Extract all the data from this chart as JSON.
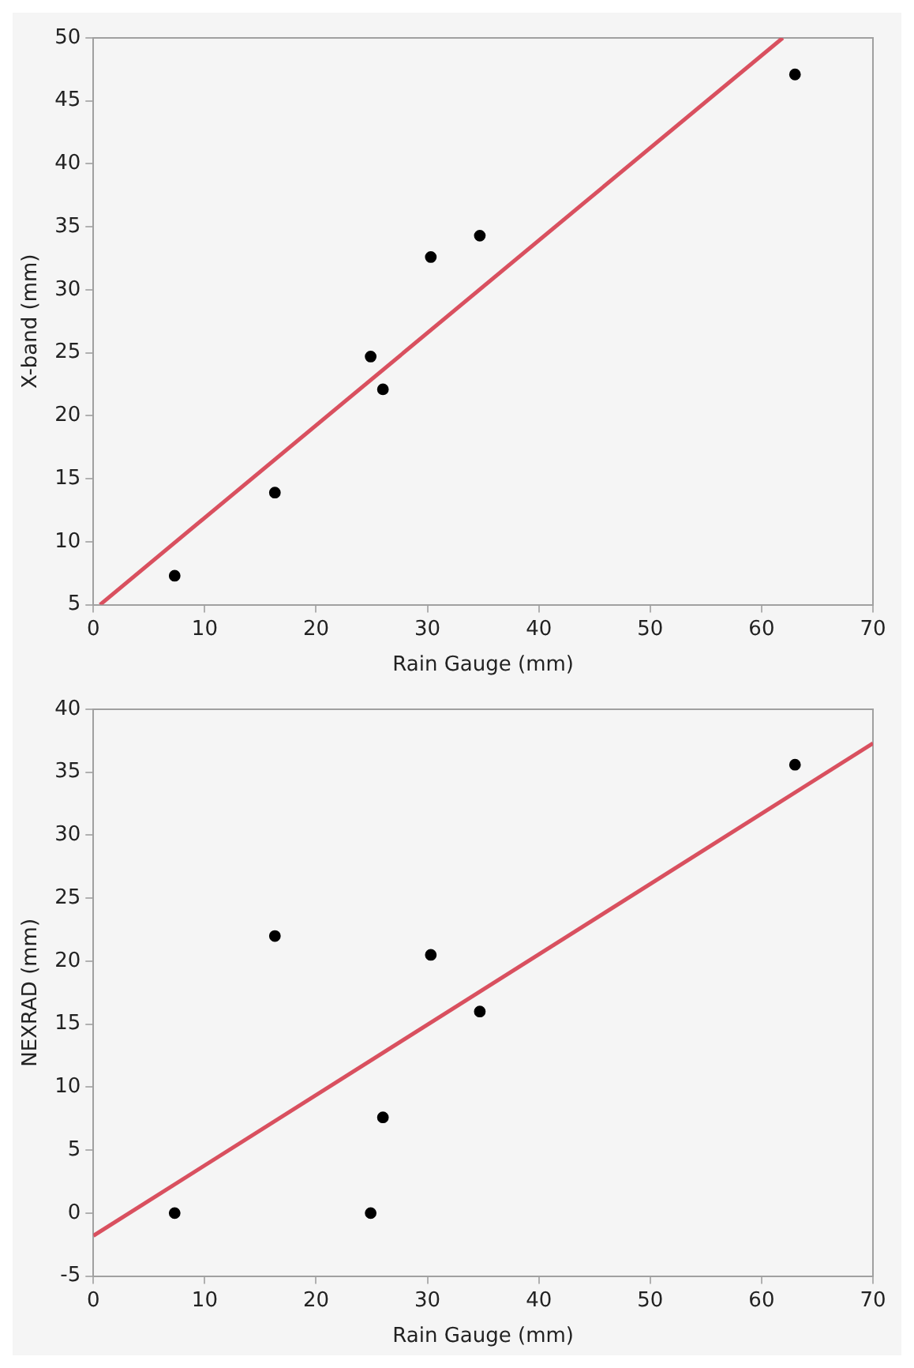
{
  "chart_data": [
    {
      "type": "scatter",
      "xlabel": "Rain Gauge (mm)",
      "ylabel": "X-band (mm)",
      "xlim": [
        0,
        70
      ],
      "xticks": [
        0,
        10,
        20,
        30,
        40,
        50,
        60,
        70
      ],
      "ylim": [
        5,
        50
      ],
      "yticks": [
        5,
        10,
        15,
        20,
        25,
        30,
        35,
        40,
        45,
        50
      ],
      "series": [
        {
          "color": "#000000",
          "marker": "circle",
          "x": [
            7.3,
            16.3,
            24.9,
            26,
            30.3,
            34.7,
            63
          ],
          "values": [
            7.3,
            13.9,
            24.7,
            22.1,
            32.6,
            34.3,
            47.1
          ]
        },
        {
          "type": "line",
          "color": "#d9505f",
          "marker": "none",
          "x": [
            0.6,
            61.9
          ],
          "values": [
            5,
            50
          ]
        }
      ]
    },
    {
      "type": "scatter",
      "xlabel": "Rain Gauge (mm)",
      "ylabel": "NEXRAD (mm)",
      "xlim": [
        0,
        70
      ],
      "xticks": [
        0,
        10,
        20,
        30,
        40,
        50,
        60,
        70
      ],
      "ylim": [
        -5,
        40
      ],
      "yticks": [
        -5,
        0,
        5,
        10,
        15,
        20,
        25,
        30,
        35,
        40
      ],
      "series": [
        {
          "color": "#000000",
          "marker": "circle",
          "x": [
            7.3,
            16.3,
            24.9,
            26,
            30.3,
            34.7,
            63
          ],
          "values": [
            0,
            22,
            0,
            7.6,
            20.5,
            16,
            35.6
          ]
        },
        {
          "type": "line",
          "color": "#d9505f",
          "marker": "none",
          "x": [
            0,
            70
          ],
          "values": [
            -1.8,
            37.3
          ]
        }
      ]
    }
  ]
}
